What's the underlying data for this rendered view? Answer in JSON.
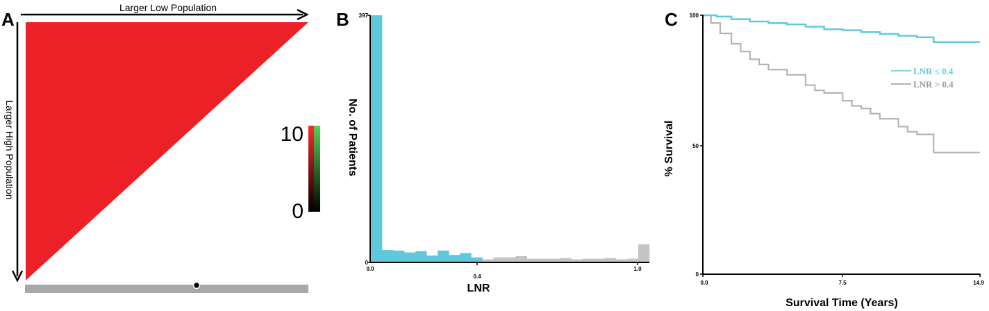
{
  "panels": {
    "a": {
      "letter": "A",
      "top_label": "Larger Low Population",
      "left_label": "Larger High Population",
      "colorbar_max": "10",
      "colorbar_min": "0",
      "fill_color": "#ec2027"
    },
    "b": {
      "letter": "B",
      "ylabel": "No. of Patients",
      "xlabel": "LNR",
      "x_ticks": [
        "0.0",
        "0.4",
        "1.0"
      ],
      "y_ticks": [
        "397",
        "0"
      ],
      "color_low": "#5fc9dc",
      "color_high": "#c4c4c4"
    },
    "c": {
      "letter": "C",
      "ylabel": "% Survival",
      "xlabel": "Survival Time (Years)",
      "x_ticks": [
        "0.0",
        "7.5",
        "14.9"
      ],
      "y_ticks": [
        "100",
        "50",
        "0"
      ],
      "legend": [
        "LNR ≤ 0.4",
        "LNR > 0.4"
      ],
      "color_low": "#5fc9dc",
      "color_high": "#b3b3b3"
    }
  },
  "chart_data": [
    {
      "type": "heatmap",
      "panel": "A",
      "title": "",
      "xlabel": "Larger Low Population",
      "ylabel": "Larger High Population",
      "colorbar_range": [
        0,
        10
      ],
      "description_values": "upper triangle all at max value"
    },
    {
      "type": "bar",
      "panel": "B",
      "xlabel": "LNR",
      "ylabel": "No. of Patients",
      "xlim": [
        0,
        1.0
      ],
      "ylim": [
        0,
        397
      ],
      "bin_width": 0.04,
      "bins": [
        0.0,
        0.04,
        0.08,
        0.12,
        0.16,
        0.2,
        0.24,
        0.28,
        0.32,
        0.36,
        0.4,
        0.44,
        0.48,
        0.52,
        0.56,
        0.6,
        0.64,
        0.68,
        0.72,
        0.76,
        0.8,
        0.84,
        0.88,
        0.92,
        0.96
      ],
      "values": [
        397,
        20,
        19,
        16,
        18,
        11,
        19,
        12,
        15,
        8,
        5,
        8,
        8,
        10,
        6,
        6,
        6,
        7,
        5,
        6,
        6,
        7,
        5,
        6,
        29
      ],
      "split_at": 0.4
    },
    {
      "type": "line",
      "panel": "C",
      "xlabel": "Survival Time (Years)",
      "ylabel": "% Survival",
      "xlim": [
        0,
        14.9
      ],
      "ylim": [
        0,
        100
      ],
      "series": [
        {
          "name": "LNR ≤ 0.4",
          "x": [
            0,
            0.7,
            1.5,
            2.5,
            3.5,
            4.5,
            5.5,
            6.5,
            7.5,
            8.5,
            9.5,
            10.5,
            11.5,
            12.4,
            13.5,
            14.9
          ],
          "y": [
            100,
            99.5,
            98.5,
            97.6,
            97,
            96.5,
            95.6,
            94.6,
            94.2,
            93.5,
            92.8,
            92.1,
            91.5,
            89.6,
            89.6,
            89.6
          ]
        },
        {
          "name": "LNR > 0.4",
          "x": [
            0,
            0.4,
            0.9,
            1.5,
            2,
            2.5,
            3,
            3.5,
            4,
            4.5,
            5.5,
            6,
            6.5,
            7.5,
            8,
            8.5,
            9,
            9.5,
            10.5,
            11,
            11.5,
            12.4,
            13,
            14.9
          ],
          "y": [
            100,
            97,
            93,
            89,
            86,
            83,
            81,
            79,
            79,
            77,
            73,
            71,
            70,
            67,
            65,
            64,
            62,
            60,
            57,
            55,
            54,
            47,
            47,
            47
          ]
        }
      ]
    }
  ]
}
